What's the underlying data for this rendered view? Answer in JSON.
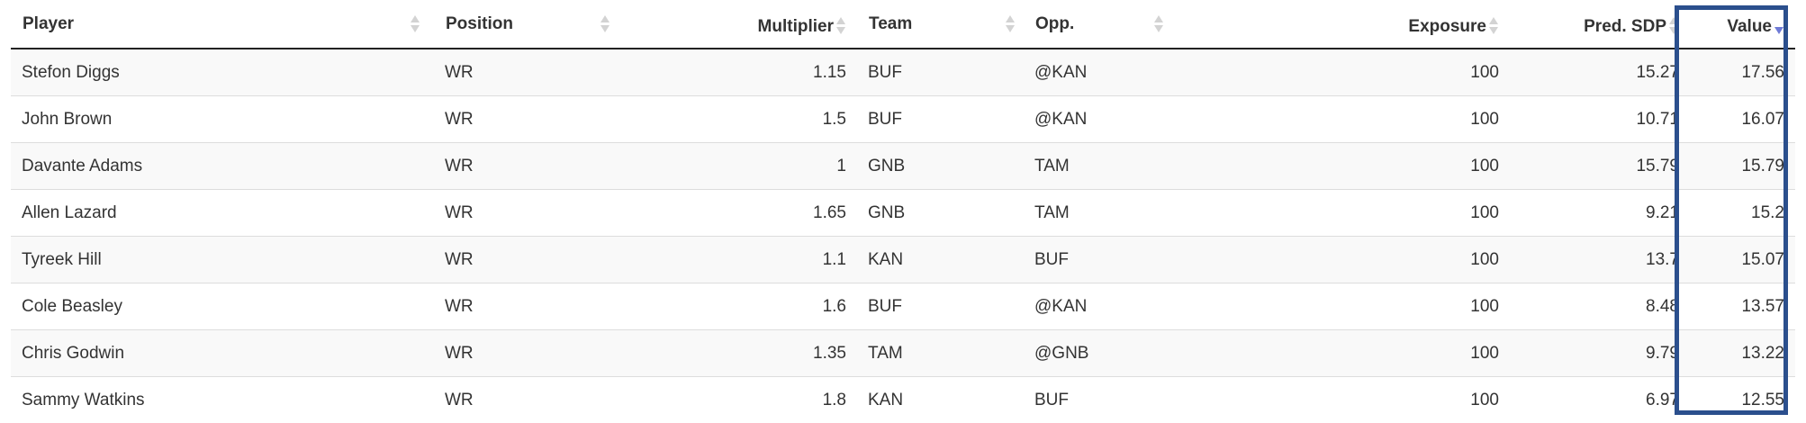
{
  "columns": [
    {
      "key": "player",
      "label": "Player",
      "align": "left"
    },
    {
      "key": "position",
      "label": "Position",
      "align": "left"
    },
    {
      "key": "multiplier",
      "label": "Multiplier",
      "align": "right"
    },
    {
      "key": "team",
      "label": "Team",
      "align": "left"
    },
    {
      "key": "opp",
      "label": "Opp.",
      "align": "left"
    },
    {
      "key": "exposure",
      "label": "Exposure",
      "align": "right"
    },
    {
      "key": "pred_sdp",
      "label": "Pred. SDP",
      "align": "right"
    },
    {
      "key": "value",
      "label": "Value",
      "align": "right"
    }
  ],
  "sort": {
    "column": "value",
    "direction": "descending"
  },
  "rows": [
    {
      "player": "Stefon Diggs",
      "position": "WR",
      "multiplier": "1.15",
      "team": "BUF",
      "opp": "@KAN",
      "exposure": "100",
      "pred_sdp": "15.27",
      "value": "17.56"
    },
    {
      "player": "John Brown",
      "position": "WR",
      "multiplier": "1.5",
      "team": "BUF",
      "opp": "@KAN",
      "exposure": "100",
      "pred_sdp": "10.71",
      "value": "16.07"
    },
    {
      "player": "Davante Adams",
      "position": "WR",
      "multiplier": "1",
      "team": "GNB",
      "opp": "TAM",
      "exposure": "100",
      "pred_sdp": "15.79",
      "value": "15.79"
    },
    {
      "player": "Allen Lazard",
      "position": "WR",
      "multiplier": "1.65",
      "team": "GNB",
      "opp": "TAM",
      "exposure": "100",
      "pred_sdp": "9.21",
      "value": "15.2"
    },
    {
      "player": "Tyreek Hill",
      "position": "WR",
      "multiplier": "1.1",
      "team": "KAN",
      "opp": "BUF",
      "exposure": "100",
      "pred_sdp": "13.7",
      "value": "15.07"
    },
    {
      "player": "Cole Beasley",
      "position": "WR",
      "multiplier": "1.6",
      "team": "BUF",
      "opp": "@KAN",
      "exposure": "100",
      "pred_sdp": "8.48",
      "value": "13.57"
    },
    {
      "player": "Chris Godwin",
      "position": "WR",
      "multiplier": "1.35",
      "team": "TAM",
      "opp": "@GNB",
      "exposure": "100",
      "pred_sdp": "9.79",
      "value": "13.22"
    },
    {
      "player": "Sammy Watkins",
      "position": "WR",
      "multiplier": "1.8",
      "team": "KAN",
      "opp": "BUF",
      "exposure": "100",
      "pred_sdp": "6.97",
      "value": "12.55"
    }
  ],
  "colors": {
    "highlight_border": "#2b4f8d",
    "sort_active": "#6f7bd6",
    "sort_inactive": "#d3d3d3",
    "row_stripe": "#f9f9f9"
  },
  "icons": {
    "sort_inactive": "sort-both-icon",
    "sort_active": "sort-desc-icon"
  }
}
